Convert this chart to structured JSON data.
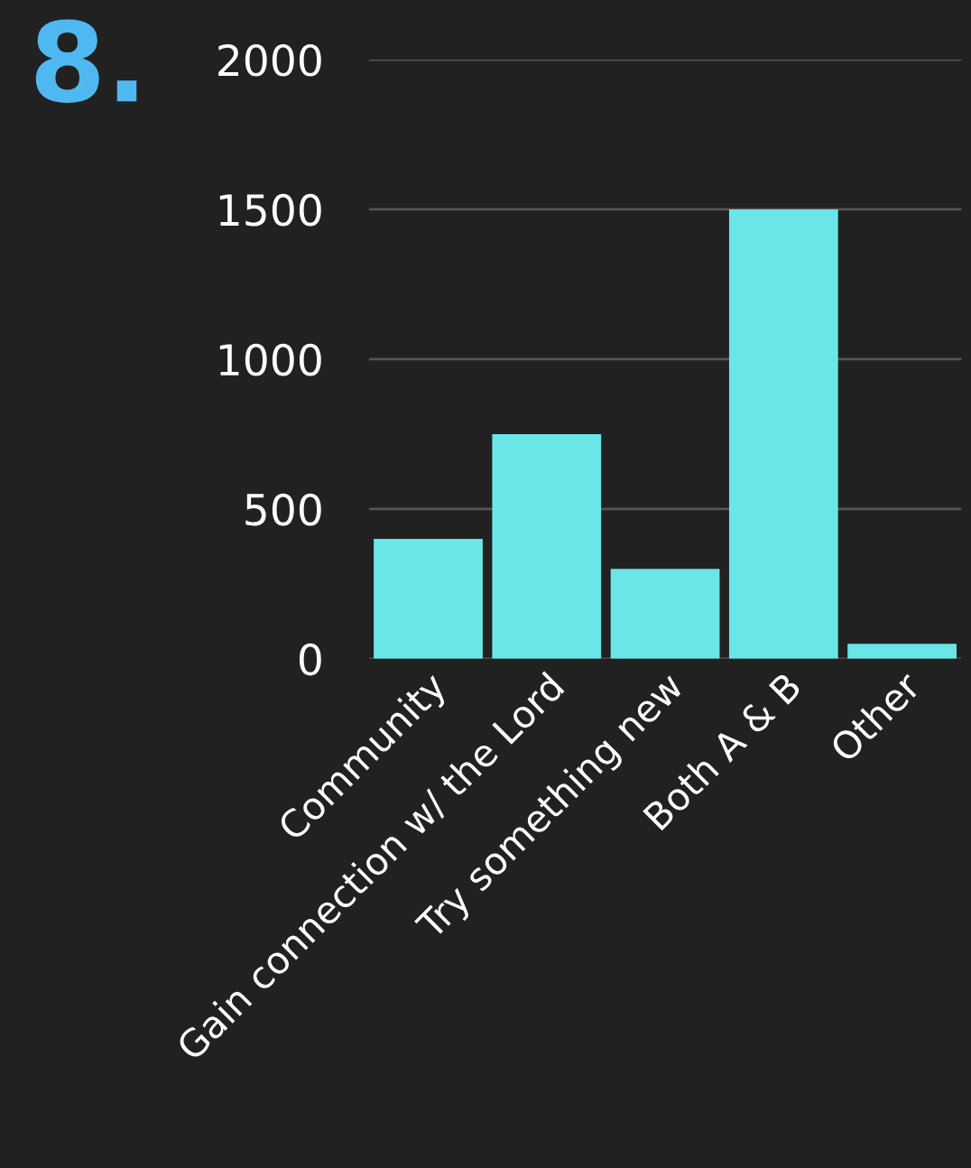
{
  "chart_data": {
    "type": "bar",
    "title": "8.",
    "categories": [
      "Community",
      "Gain connection w/ the Lord",
      "Try something new",
      "Both A & B",
      "Other"
    ],
    "values": [
      400,
      750,
      300,
      1500,
      50
    ],
    "color": "#6ae6e8",
    "ylim": [
      0,
      2000
    ],
    "yticks": [
      0,
      500,
      1000,
      1500,
      2000
    ],
    "grid": "y"
  }
}
